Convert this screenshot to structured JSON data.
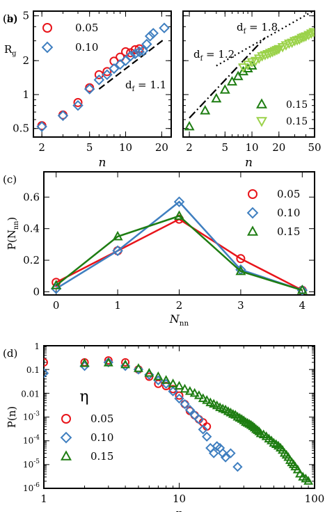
{
  "colors": {
    "red": "#e8141a",
    "blue": "#3f7fc0",
    "green": "#1e7d12",
    "lightgreen": "#9bd24a"
  },
  "chart_data": [
    {
      "id": "a",
      "type": "scatter",
      "panel_label": "(a)",
      "xlabel": "n",
      "ylabel": "R",
      "ylabel_sub": "g",
      "xscale": "log",
      "yscale": "log",
      "xlim": [
        1.7,
        24
      ],
      "ylim": [
        0.42,
        5.5
      ],
      "xticks": [
        2,
        5,
        10,
        20
      ],
      "xticklabels": [
        "2",
        "5",
        "10",
        "20"
      ],
      "yticks": [
        0.5,
        1,
        2,
        5
      ],
      "yticklabels": [
        "0.5",
        "1",
        "2",
        "5"
      ],
      "legend_position": "top-left",
      "series": [
        {
          "name": "0.05",
          "marker": "circle",
          "color": "#e8141a",
          "x": [
            2,
            3,
            4,
            5,
            6,
            7,
            8,
            9,
            10,
            11,
            12,
            13
          ],
          "y": [
            0.53,
            0.66,
            0.85,
            1.15,
            1.5,
            1.6,
            1.98,
            2.15,
            2.4,
            2.35,
            2.5,
            2.55
          ]
        },
        {
          "name": "0.10",
          "marker": "diamond",
          "color": "#3f7fc0",
          "x": [
            2,
            3,
            4,
            5,
            6,
            7,
            8,
            9,
            10,
            11,
            12,
            13,
            14,
            15,
            16,
            17,
            21
          ],
          "y": [
            0.52,
            0.65,
            0.8,
            1.12,
            1.35,
            1.5,
            1.7,
            1.85,
            2.0,
            2.2,
            2.3,
            2.4,
            2.45,
            2.8,
            3.3,
            3.5,
            3.9
          ]
        }
      ],
      "guides": [
        {
          "label": "d",
          "label_sub": "f",
          "value": "= 1.1",
          "x": [
            6,
            21
          ],
          "y": [
            1.12,
            3.1
          ]
        }
      ]
    },
    {
      "id": "b",
      "type": "scatter",
      "panel_label": "(b)",
      "xlabel": "n",
      "xscale": "log",
      "yscale": "log",
      "xlim": [
        1.7,
        50
      ],
      "ylim": [
        0.42,
        5.5
      ],
      "xticks": [
        2,
        5,
        10,
        20,
        50
      ],
      "xticklabels": [
        "2",
        "5",
        "10",
        "20",
        "50"
      ],
      "yticks": [
        0.5,
        1,
        2,
        5
      ],
      "legend_position": "bottom-right",
      "series": [
        {
          "name": "0.15",
          "marker": "triangle-up",
          "color": "#1e7d12",
          "x": [
            2,
            3,
            4,
            5,
            6,
            7,
            8,
            9,
            10
          ],
          "y": [
            0.52,
            0.72,
            0.92,
            1.1,
            1.3,
            1.45,
            1.6,
            1.7,
            1.8
          ]
        },
        {
          "name": "0.15",
          "marker": "triangle-down",
          "color": "#9bd24a",
          "x": [
            8,
            9,
            10,
            11,
            12,
            13,
            14,
            15,
            16,
            17,
            18,
            19,
            20,
            22,
            24,
            26,
            28,
            30,
            32,
            34,
            36,
            38,
            40,
            43,
            46,
            49
          ],
          "y": [
            1.75,
            1.85,
            1.95,
            2.0,
            2.1,
            2.2,
            2.25,
            2.3,
            2.35,
            2.4,
            2.45,
            2.5,
            2.55,
            2.65,
            2.75,
            2.85,
            2.9,
            3.0,
            3.05,
            3.1,
            3.2,
            3.25,
            3.3,
            3.4,
            3.5,
            3.6
          ]
        }
      ],
      "guides": [
        {
          "label": "d",
          "label_sub": "f",
          "value": "= 1.2",
          "x": [
            2,
            14
          ],
          "y": [
            0.62,
            3.2
          ],
          "style": "dashdot"
        },
        {
          "label": "d",
          "label_sub": "f",
          "value": "= 1.8",
          "x": [
            4,
            50
          ],
          "y": [
            1.8,
            5.6
          ],
          "style": "dotted"
        }
      ]
    },
    {
      "id": "c",
      "type": "line",
      "panel_label": "(c)",
      "xlabel": "N",
      "xlabel_sub": "nn",
      "ylabel": "P(N",
      "ylabel_sub": "nn",
      "ylabel_end": ")",
      "xlim": [
        -0.2,
        4.2
      ],
      "ylim": [
        -0.02,
        0.76
      ],
      "xticks": [
        0,
        1,
        2,
        3,
        4
      ],
      "xticklabels": [
        "0",
        "1",
        "2",
        "3",
        "4"
      ],
      "yticks": [
        0,
        0.2,
        0.4,
        0.6
      ],
      "yticklabels": [
        "0",
        "0.2",
        "0.4",
        "0.6"
      ],
      "legend_position": "top-right",
      "x": [
        0,
        1,
        2,
        3,
        4
      ],
      "series": [
        {
          "name": "0.05",
          "marker": "circle",
          "color": "#e8141a",
          "values": [
            0.06,
            0.26,
            0.46,
            0.21,
            0.01
          ]
        },
        {
          "name": "0.10",
          "marker": "diamond",
          "color": "#3f7fc0",
          "values": [
            0.02,
            0.26,
            0.57,
            0.14,
            0.01
          ]
        },
        {
          "name": "0.15",
          "marker": "triangle-up",
          "color": "#1e7d12",
          "values": [
            0.04,
            0.35,
            0.48,
            0.13,
            0.01
          ]
        }
      ]
    },
    {
      "id": "d",
      "type": "scatter",
      "panel_label": "(d)",
      "xlabel": "n",
      "ylabel": "P(n)",
      "xscale": "log",
      "yscale": "log",
      "xlim": [
        1,
        100
      ],
      "ylim": [
        1e-06,
        1
      ],
      "xticks": [
        1,
        10,
        100
      ],
      "xticklabels": [
        "1",
        "10",
        "100"
      ],
      "yticks": [
        1,
        0.1,
        0.01,
        0.001,
        0.0001,
        1e-05,
        1e-06
      ],
      "yticklabels": [
        "1",
        "0.1",
        "0.01",
        "10-3",
        "10-4",
        "10-5",
        "10-6"
      ],
      "legend_title": "η",
      "legend_position": "bottom-left",
      "series": [
        {
          "name": "0.05",
          "marker": "circle",
          "color": "#e8141a",
          "x": [
            1,
            2,
            3,
            4,
            5,
            6,
            7,
            8,
            9,
            10,
            11,
            12,
            13,
            14,
            15,
            16
          ],
          "y": [
            0.2,
            0.2,
            0.24,
            0.2,
            0.1,
            0.05,
            0.025,
            0.02,
            0.015,
            0.008,
            0.0035,
            0.0018,
            0.0012,
            0.0008,
            0.0006,
            0.0004
          ]
        },
        {
          "name": "0.10",
          "marker": "diamond",
          "color": "#3f7fc0",
          "x": [
            1,
            2,
            3,
            4,
            5,
            6,
            7,
            8,
            9,
            10,
            11,
            12,
            13,
            14,
            15,
            16,
            17,
            18,
            19,
            20,
            21,
            22,
            24,
            27
          ],
          "y": [
            0.07,
            0.14,
            0.2,
            0.14,
            0.1,
            0.06,
            0.035,
            0.025,
            0.012,
            0.006,
            0.0035,
            0.002,
            0.0012,
            0.0008,
            0.0003,
            0.00015,
            5e-05,
            3e-05,
            6e-05,
            5e-05,
            3e-05,
            2e-05,
            3e-05,
            8e-06
          ]
        },
        {
          "name": "0.15",
          "marker": "triangle-up",
          "color": "#1e7d12",
          "x": [
            2,
            3,
            4,
            5,
            6,
            7,
            8,
            9,
            10,
            11,
            12,
            13,
            14,
            15,
            16,
            17,
            18,
            19,
            20,
            21,
            22,
            23,
            24,
            25,
            26,
            27,
            28,
            29,
            30,
            31,
            32,
            33,
            34,
            35,
            36,
            37,
            38,
            39,
            40,
            42,
            44,
            46,
            48,
            50,
            52,
            54,
            56,
            58,
            60,
            62,
            64,
            66,
            68,
            70,
            72,
            75,
            78,
            82,
            86,
            90
          ],
          "y": [
            0.18,
            0.19,
            0.16,
            0.11,
            0.07,
            0.05,
            0.035,
            0.025,
            0.02,
            0.015,
            0.012,
            0.01,
            0.008,
            0.006,
            0.005,
            0.004,
            0.0035,
            0.003,
            0.0025,
            0.0022,
            0.002,
            0.0017,
            0.0015,
            0.0013,
            0.0012,
            0.001,
            0.0009,
            0.0008,
            0.0007,
            0.0006,
            0.00055,
            0.0005,
            0.00045,
            0.0004,
            0.00035,
            0.0003,
            0.00027,
            0.00024,
            0.0002,
            0.00018,
            0.00015,
            0.00012,
            0.0001,
            8e-05,
            7e-05,
            6e-05,
            5e-05,
            4e-05,
            3e-05,
            2.5e-05,
            2e-05,
            1.5e-05,
            1.2e-05,
            1e-05,
            8e-06,
            6e-06,
            4e-06,
            3e-06,
            2.5e-06,
            2e-06
          ]
        }
      ]
    }
  ]
}
